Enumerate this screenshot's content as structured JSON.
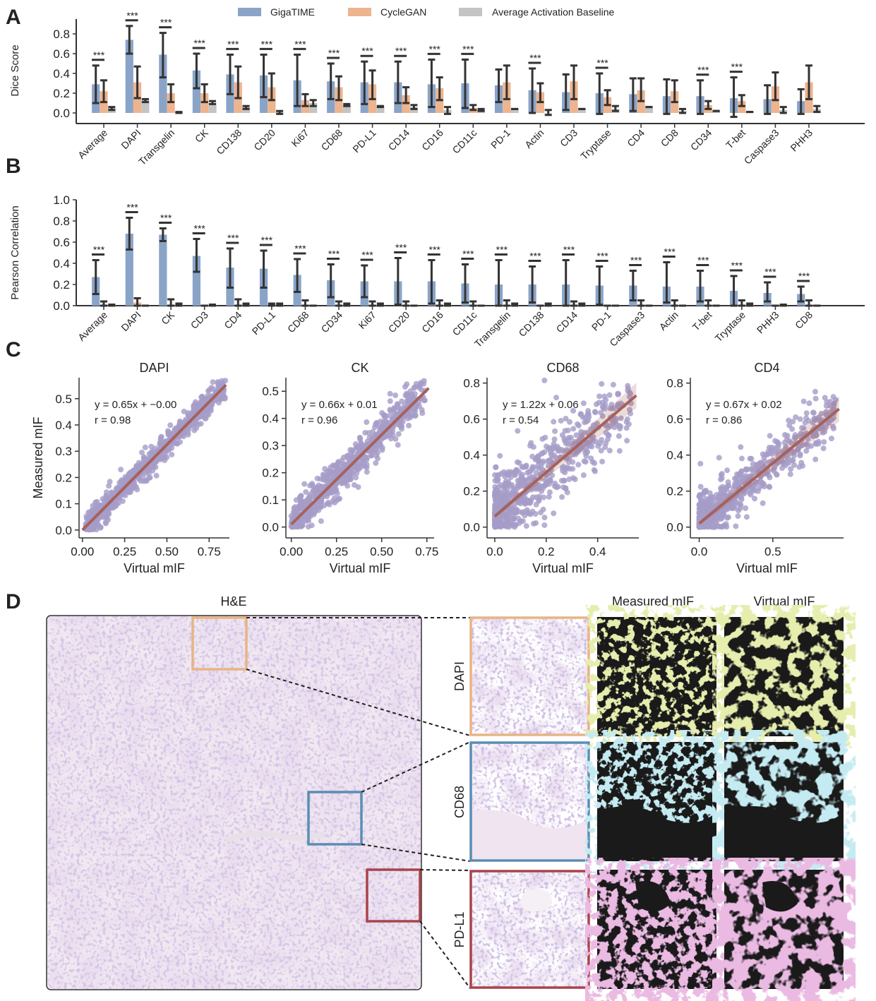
{
  "panel_labels": {
    "a": "A",
    "b": "B",
    "c": "C",
    "d": "D"
  },
  "colors": {
    "gigatime": "#8aa4c8",
    "cyclegan": "#eeb48e",
    "baseline": "#c4c4c4",
    "errorbar": "#333333",
    "scatter": "#a59cc8",
    "fit": "#a6615a",
    "box_dapi": "#e8b483",
    "box_cd68": "#5b8db4",
    "box_pdl1": "#a8444a",
    "mif_dapi": "#c9d86a",
    "mif_cd68": "#8fd3e3",
    "mif_pdl1": "#d27cc2"
  },
  "chart_data": [
    {
      "type": "bar",
      "panel": "A",
      "ylabel": "Dice Score",
      "ylim": [
        -0.1,
        0.95
      ],
      "yticks": [
        "0.0",
        "0.2",
        "0.4",
        "0.6",
        "0.8"
      ],
      "legend": [
        "GigaTIME",
        "CycleGAN",
        "Average Activation Baseline"
      ],
      "legend_position": "top",
      "significance_label": "***",
      "categories": [
        "Average",
        "DAPI",
        "Transgelin",
        "CK",
        "CD138",
        "CD20",
        "Ki67",
        "CD68",
        "PD-L1",
        "CD14",
        "CD16",
        "CD11c",
        "PD-1",
        "Actin",
        "CD3",
        "Tryptase",
        "CD4",
        "CD8",
        "CD34",
        "T-bet",
        "Caspase3",
        "PHH3"
      ],
      "significant": [
        true,
        true,
        true,
        true,
        true,
        true,
        true,
        true,
        true,
        true,
        true,
        true,
        false,
        true,
        false,
        true,
        false,
        false,
        true,
        true,
        false,
        false
      ],
      "series": [
        {
          "name": "GigaTIME",
          "values": [
            0.29,
            0.74,
            0.59,
            0.43,
            0.39,
            0.38,
            0.33,
            0.32,
            0.31,
            0.31,
            0.29,
            0.3,
            0.28,
            0.23,
            0.21,
            0.2,
            0.19,
            0.17,
            0.17,
            0.15,
            0.14,
            0.12
          ],
          "err_low": [
            0.1,
            0.6,
            0.36,
            0.25,
            0.19,
            0.16,
            0.07,
            0.14,
            0.09,
            0.1,
            0.06,
            0.05,
            0.11,
            0.0,
            0.03,
            -0.01,
            0.02,
            -0.01,
            -0.01,
            -0.04,
            -0.01,
            -0.01
          ],
          "err_high": [
            0.48,
            0.88,
            0.81,
            0.6,
            0.59,
            0.59,
            0.59,
            0.5,
            0.52,
            0.52,
            0.54,
            0.54,
            0.44,
            0.45,
            0.39,
            0.4,
            0.35,
            0.34,
            0.33,
            0.36,
            0.28,
            0.24
          ]
        },
        {
          "name": "CycleGAN",
          "values": [
            0.22,
            0.31,
            0.2,
            0.2,
            0.31,
            0.26,
            0.13,
            0.26,
            0.29,
            0.18,
            0.25,
            0.05,
            0.31,
            0.21,
            0.32,
            0.16,
            0.23,
            0.22,
            0.08,
            0.12,
            0.27,
            0.31
          ],
          "err_low": [
            0.11,
            0.15,
            0.11,
            0.11,
            0.15,
            0.13,
            0.07,
            0.13,
            0.14,
            0.1,
            0.13,
            0.03,
            0.14,
            0.11,
            0.14,
            0.08,
            0.12,
            0.11,
            0.04,
            0.07,
            0.13,
            0.14
          ],
          "err_high": [
            0.33,
            0.47,
            0.29,
            0.29,
            0.47,
            0.4,
            0.19,
            0.37,
            0.43,
            0.26,
            0.36,
            0.08,
            0.48,
            0.3,
            0.48,
            0.23,
            0.35,
            0.33,
            0.12,
            0.18,
            0.41,
            0.48
          ]
        },
        {
          "name": "Average Activation Baseline",
          "values": [
            0.05,
            0.13,
            0.01,
            0.1,
            0.06,
            0.01,
            0.1,
            0.08,
            0.07,
            0.06,
            0.03,
            0.03,
            0.04,
            0.0,
            0.04,
            0.04,
            0.06,
            0.02,
            0.02,
            0.01,
            0.03,
            0.04
          ],
          "err_low": [
            0.03,
            0.11,
            0.0,
            0.09,
            0.04,
            -0.01,
            0.07,
            0.07,
            0.06,
            0.04,
            -0.01,
            0.02,
            0.04,
            -0.02,
            0.04,
            0.02,
            0.06,
            0.0,
            0.02,
            0.01,
            0.0,
            0.01
          ],
          "err_high": [
            0.06,
            0.14,
            0.01,
            0.12,
            0.07,
            0.02,
            0.13,
            0.09,
            0.07,
            0.08,
            0.06,
            0.04,
            0.04,
            0.03,
            0.04,
            0.07,
            0.06,
            0.04,
            0.02,
            0.01,
            0.06,
            0.07
          ]
        }
      ]
    },
    {
      "type": "bar",
      "panel": "B",
      "ylabel": "Pearson Correlation",
      "ylim": [
        0.0,
        1.0
      ],
      "yticks": [
        "0.0",
        "0.2",
        "0.4",
        "0.6",
        "0.8",
        "1.0"
      ],
      "significance_label": "***",
      "categories": [
        "Average",
        "DAPI",
        "CK",
        "CD3",
        "CD4",
        "PD-L1",
        "CD68",
        "CD34",
        "Ki67",
        "CD20",
        "CD16",
        "CD11c",
        "Transgelin",
        "CD138",
        "CD14",
        "PD-1",
        "Caspase3",
        "Actin",
        "T-bet",
        "Tryptase",
        "PHH3",
        "CD8"
      ],
      "significant": [
        true,
        true,
        true,
        true,
        true,
        true,
        true,
        true,
        true,
        true,
        true,
        true,
        true,
        true,
        true,
        true,
        true,
        true,
        true,
        true,
        true,
        true
      ],
      "series": [
        {
          "name": "GigaTIME",
          "values": [
            0.27,
            0.68,
            0.67,
            0.47,
            0.36,
            0.35,
            0.29,
            0.24,
            0.23,
            0.23,
            0.23,
            0.21,
            0.2,
            0.2,
            0.2,
            0.19,
            0.19,
            0.18,
            0.18,
            0.14,
            0.12,
            0.11
          ],
          "err_low": [
            0.11,
            0.53,
            0.61,
            0.32,
            0.17,
            0.17,
            0.13,
            0.08,
            0.08,
            0.01,
            0.02,
            0.03,
            0.0,
            0.03,
            0.0,
            0.01,
            0.05,
            0.03,
            0.04,
            0.0,
            0.04,
            0.04
          ],
          "err_high": [
            0.43,
            0.83,
            0.73,
            0.63,
            0.54,
            0.52,
            0.44,
            0.39,
            0.38,
            0.45,
            0.43,
            0.39,
            0.43,
            0.37,
            0.43,
            0.37,
            0.33,
            0.41,
            0.33,
            0.28,
            0.22,
            0.18
          ]
        },
        {
          "name": "CycleGAN",
          "values": [
            0.0,
            0.03,
            0.0,
            0.0,
            0.0,
            0.0,
            0.0,
            0.0,
            0.0,
            0.0,
            0.0,
            0.0,
            0.0,
            0.0,
            0.0,
            0.0,
            0.0,
            0.0,
            0.0,
            0.0,
            0.0,
            0.0
          ],
          "err_low": [
            0.0,
            0.0,
            0.0,
            0.0,
            0.0,
            0.0,
            0.0,
            0.0,
            0.0,
            0.0,
            0.0,
            0.0,
            0.0,
            0.0,
            0.0,
            0.0,
            0.0,
            0.0,
            0.0,
            0.0,
            0.0,
            0.0
          ],
          "err_high": [
            0.04,
            0.07,
            0.06,
            0.0,
            0.06,
            0.02,
            0.05,
            0.04,
            0.04,
            0.04,
            0.05,
            0.04,
            0.05,
            0.0,
            0.04,
            0.0,
            0.05,
            0.05,
            0.05,
            0.05,
            0.0,
            0.05
          ]
        },
        {
          "name": "Average Activation Baseline",
          "values": [
            0.01,
            0.0,
            0.01,
            0.01,
            0.01,
            0.01,
            0.0,
            0.01,
            0.01,
            0.0,
            0.01,
            0.0,
            0.01,
            0.01,
            0.01,
            0.0,
            0.0,
            0.0,
            0.0,
            0.01,
            0.01,
            0.0
          ],
          "err_low": [
            0.0,
            0.0,
            0.0,
            0.0,
            0.0,
            0.0,
            0.0,
            0.0,
            0.0,
            0.0,
            0.0,
            0.0,
            0.0,
            0.0,
            0.0,
            0.0,
            0.0,
            0.0,
            0.0,
            0.0,
            0.0,
            0.0
          ],
          "err_high": [
            0.01,
            0.0,
            0.02,
            0.01,
            0.02,
            0.02,
            0.0,
            0.02,
            0.02,
            0.0,
            0.02,
            0.0,
            0.02,
            0.02,
            0.02,
            0.0,
            0.0,
            0.0,
            0.0,
            0.02,
            0.01,
            0.0
          ]
        }
      ]
    },
    {
      "type": "scatter",
      "panel": "C",
      "title": "DAPI",
      "xlabel": "Virtual mIF",
      "ylabel": "Measured mIF",
      "xlim": [
        -0.02,
        0.87
      ],
      "ylim": [
        -0.03,
        0.58
      ],
      "xticks": [
        "0.00",
        "0.25",
        "0.50",
        "0.75"
      ],
      "yticks": [
        "0.0",
        "0.1",
        "0.2",
        "0.3",
        "0.4",
        "0.5"
      ],
      "fit": {
        "slope": 0.65,
        "intercept": 0.0,
        "r": 0.98
      },
      "equation": "y = 0.65x + −0.00",
      "r_label": "r = 0.98",
      "x_range": [
        0.02,
        0.85
      ],
      "noise": 0.025,
      "confidence_band": false
    },
    {
      "type": "scatter",
      "panel": "C",
      "title": "CK",
      "xlabel": "Virtual mIF",
      "ylabel": "",
      "xlim": [
        -0.03,
        0.79
      ],
      "ylim": [
        -0.04,
        0.55
      ],
      "xticks": [
        "0.00",
        "0.25",
        "0.50",
        "0.75"
      ],
      "yticks": [
        "0.0",
        "0.1",
        "0.2",
        "0.3",
        "0.4",
        "0.5"
      ],
      "fit": {
        "slope": 0.66,
        "intercept": 0.01,
        "r": 0.96
      },
      "equation": "y = 0.66x + 0.01",
      "r_label": "r = 0.96",
      "x_range": [
        0.0,
        0.74
      ],
      "noise": 0.035,
      "confidence_band": false
    },
    {
      "type": "scatter",
      "panel": "C",
      "title": "CD68",
      "xlabel": "Virtual mIF",
      "ylabel": "",
      "xlim": [
        -0.03,
        0.56
      ],
      "ylim": [
        -0.06,
        0.83
      ],
      "xticks": [
        "0.0",
        "0.2",
        "0.4"
      ],
      "yticks": [
        "0.0",
        "0.2",
        "0.4",
        "0.6",
        "0.8"
      ],
      "fit": {
        "slope": 1.22,
        "intercept": 0.06,
        "r": 0.54
      },
      "equation": "y = 1.22x + 0.06",
      "r_label": "r = 0.54",
      "x_range": [
        0.0,
        0.53
      ],
      "noise": 0.1,
      "confidence_band": true
    },
    {
      "type": "scatter",
      "panel": "C",
      "title": "CD4",
      "xlabel": "Virtual mIF",
      "ylabel": "",
      "xlim": [
        -0.06,
        0.98
      ],
      "ylim": [
        -0.06,
        0.83
      ],
      "xticks": [
        "0.0",
        "0.5"
      ],
      "yticks": [
        "0.0",
        "0.2",
        "0.4",
        "0.6",
        "0.8"
      ],
      "fit": {
        "slope": 0.67,
        "intercept": 0.02,
        "r": 0.86
      },
      "equation": "y = 0.67x + 0.02",
      "r_label": "r = 0.86",
      "x_range": [
        0.0,
        0.93
      ],
      "noise": 0.06,
      "confidence_band": true
    }
  ],
  "panel_d": {
    "he_title": "H&E",
    "measured_title": "Measured mIF",
    "virtual_title": "Virtual mIF",
    "rows": [
      {
        "label": "DAPI"
      },
      {
        "label": "CD68"
      },
      {
        "label": "PD-L1"
      }
    ]
  }
}
